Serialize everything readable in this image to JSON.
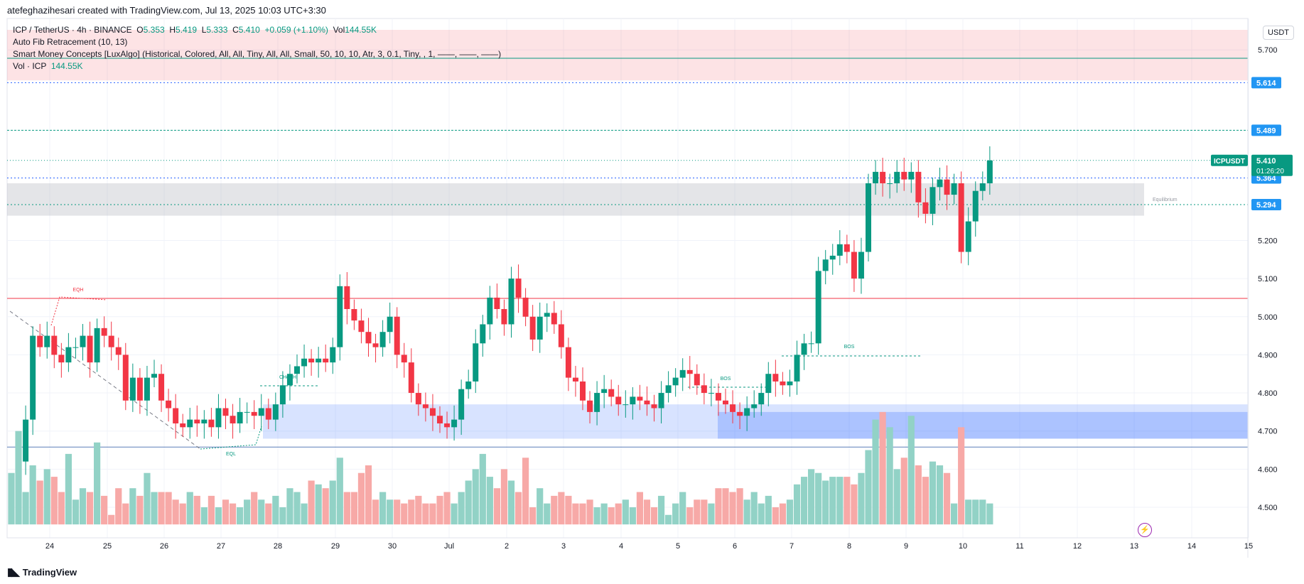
{
  "header": {
    "credit": "atefeghazihesari created with TradingView.com, Jul 13, 2025 10:03 UTC+3:30"
  },
  "legend": {
    "symbol": "ICP / TetherUS · 4h · BINANCE",
    "o_label": "O",
    "o": "5.353",
    "h_label": "H",
    "h": "5.419",
    "l_label": "L",
    "l": "5.333",
    "c_label": "C",
    "c": "5.410",
    "change": "+0.059 (+1.10%)",
    "vol_label": "Vol",
    "vol": "144.55K",
    "indicator1": "Auto Fib Retracement (10, 13)",
    "indicator2": "Smart Money Concepts [LuxAlgo] (Historical, Colored, All, All, Tiny, All, All, Small, 50, 10, 10, Atr, 3, 0.1, Tiny, , 1, ——, ——, ——)",
    "indicator3_label": "Vol · ICP",
    "indicator3_value": "144.55K"
  },
  "footer": {
    "brand": "TradingView"
  },
  "axis": {
    "currency": "USDT"
  },
  "colors": {
    "up": "#089981",
    "down": "#f23645",
    "up_vol": "#92d2c6",
    "down_vol": "#f7a9a7",
    "accent": "#2962ff"
  },
  "chart_data": {
    "type": "candlestick",
    "yticks": [
      4.5,
      4.6,
      4.7,
      4.8,
      4.9,
      5.0,
      5.1,
      5.2,
      5.7
    ],
    "ytick_labels": [
      "4.500",
      "4.600",
      "4.700",
      "4.800",
      "4.900",
      "5.000",
      "5.100",
      "5.200",
      "5.700"
    ],
    "xtick_labels": [
      "24",
      "25",
      "26",
      "27",
      "28",
      "29",
      "30",
      "Jul",
      "2",
      "3",
      "4",
      "5",
      "6",
      "7",
      "8",
      "9",
      "10",
      "11",
      "12",
      "13",
      "14",
      "15"
    ],
    "price_tags": [
      {
        "label": "5.614",
        "value": 5.614,
        "color": "#2196f3"
      },
      {
        "label": "5.489",
        "value": 5.489,
        "color": "#2196f3"
      },
      {
        "label": "5.364",
        "value": 5.364,
        "color": "#2196f3"
      },
      {
        "label": "5.294",
        "value": 5.294,
        "color": "#2196f3"
      }
    ],
    "last_price": {
      "ticker": "ICPUSDT",
      "price": "5.410",
      "countdown": "01:26:20",
      "value": 5.41
    },
    "annotations": {
      "eqh": "EQH",
      "eql": "EQL",
      "choch": "CHoCH",
      "bos1": "BOS",
      "bos2": "BOS",
      "equilibrium": "Equilibrium"
    },
    "levels": {
      "resistance": 5.048,
      "premium_bottom": 5.62,
      "equilibrium_top": 5.35,
      "equilibrium_bottom": 5.265,
      "demand_top": 4.77,
      "demand_bottom": 4.68,
      "eql_line": 4.658
    },
    "close": [
      4.56,
      4.62,
      4.73,
      4.95,
      4.92,
      4.95,
      4.9,
      4.88,
      4.92,
      4.92,
      4.95,
      4.88,
      4.97,
      4.95,
      4.92,
      4.9,
      4.78,
      4.84,
      4.78,
      4.84,
      4.85,
      4.78,
      4.76,
      4.72,
      4.71,
      4.73,
      4.72,
      4.73,
      4.71,
      4.76,
      4.74,
      4.72,
      4.75,
      4.75,
      4.74,
      4.76,
      4.73,
      4.77,
      4.82,
      4.85,
      4.87,
      4.89,
      4.88,
      4.89,
      4.88,
      4.92,
      5.08,
      5.02,
      4.99,
      4.96,
      4.93,
      4.92,
      4.96,
      5.0,
      4.9,
      4.88,
      4.8,
      4.77,
      4.76,
      4.74,
      4.72,
      4.71,
      4.73,
      4.81,
      4.83,
      4.93,
      4.98,
      5.05,
      5.02,
      4.98,
      5.1,
      5.05,
      5.0,
      4.94,
      5.0,
      5.01,
      4.98,
      4.92,
      4.84,
      4.83,
      4.78,
      4.75,
      4.8,
      4.81,
      4.79,
      4.77,
      4.77,
      4.79,
      4.78,
      4.77,
      4.76,
      4.8,
      4.82,
      4.84,
      4.86,
      4.85,
      4.82,
      4.8,
      4.8,
      4.78,
      4.77,
      4.75,
      4.74,
      4.76,
      4.77,
      4.8,
      4.85,
      4.83,
      4.82,
      4.83,
      4.9,
      4.93,
      4.93,
      5.12,
      5.15,
      5.16,
      5.19,
      5.17,
      5.1,
      5.17,
      5.35,
      5.38,
      5.35,
      5.35,
      5.38,
      5.36,
      5.38,
      5.3,
      5.27,
      5.34,
      5.36,
      5.32,
      5.35,
      5.17,
      5.25,
      5.33,
      5.35,
      5.41
    ],
    "volume": [
      4.59,
      4.7,
      4.54,
      4.61,
      4.57,
      4.6,
      4.58,
      4.54,
      4.64,
      4.52,
      4.55,
      4.54,
      4.67,
      4.53,
      4.48,
      4.55,
      4.51,
      4.55,
      4.53,
      4.59,
      4.54,
      4.54,
      4.54,
      4.52,
      4.51,
      4.54,
      4.53,
      4.5,
      4.53,
      4.5,
      4.52,
      4.51,
      4.5,
      4.52,
      4.54,
      4.52,
      4.51,
      4.53,
      4.5,
      4.55,
      4.54,
      4.51,
      4.57,
      4.56,
      4.55,
      4.57,
      4.63,
      4.54,
      4.54,
      4.59,
      4.61,
      4.52,
      4.54,
      4.52,
      4.52,
      4.51,
      4.52,
      4.53,
      4.51,
      4.51,
      4.53,
      4.54,
      4.51,
      4.54,
      4.57,
      4.6,
      4.64,
      4.58,
      4.55,
      4.6,
      4.57,
      4.54,
      4.63,
      4.5,
      4.55,
      4.51,
      4.53,
      4.54,
      4.53,
      4.51,
      4.51,
      4.52,
      4.5,
      4.51,
      4.5,
      4.51,
      4.52,
      4.5,
      4.54,
      4.52,
      4.5,
      4.53,
      4.48,
      4.51,
      4.54,
      4.5,
      4.52,
      4.52,
      4.51,
      4.55,
      4.55,
      4.54,
      4.55,
      4.52,
      4.54,
      4.51,
      4.53,
      4.5,
      4.51,
      4.52,
      4.56,
      4.58,
      4.6,
      4.59,
      4.57,
      4.58,
      4.58,
      4.58,
      4.56,
      4.59,
      4.65,
      4.73,
      4.75,
      4.71,
      4.6,
      4.63,
      4.74,
      4.61,
      4.58,
      4.62,
      4.61,
      4.59,
      4.51,
      4.71,
      4.52,
      4.52,
      4.52,
      4.51
    ]
  }
}
